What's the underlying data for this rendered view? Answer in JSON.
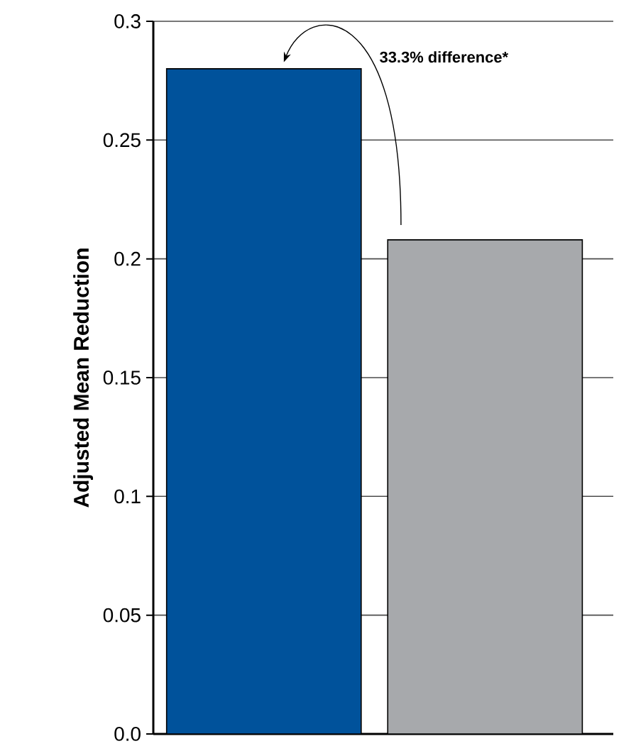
{
  "chart_data": {
    "type": "bar",
    "ylabel": "Adjusted Mean Reduction",
    "categories": [
      null,
      null
    ],
    "values": [
      0.28,
      0.208
    ],
    "colors": [
      "#00529b",
      "#a7a9ac"
    ],
    "ylim": [
      0,
      0.3
    ],
    "yticks": [
      {
        "value": 0,
        "label": "0.0"
      },
      0.05,
      0.1,
      0.15,
      0.2,
      0.25,
      0.3
    ],
    "grid": "y",
    "annotations": [
      "33.3% difference*"
    ]
  }
}
